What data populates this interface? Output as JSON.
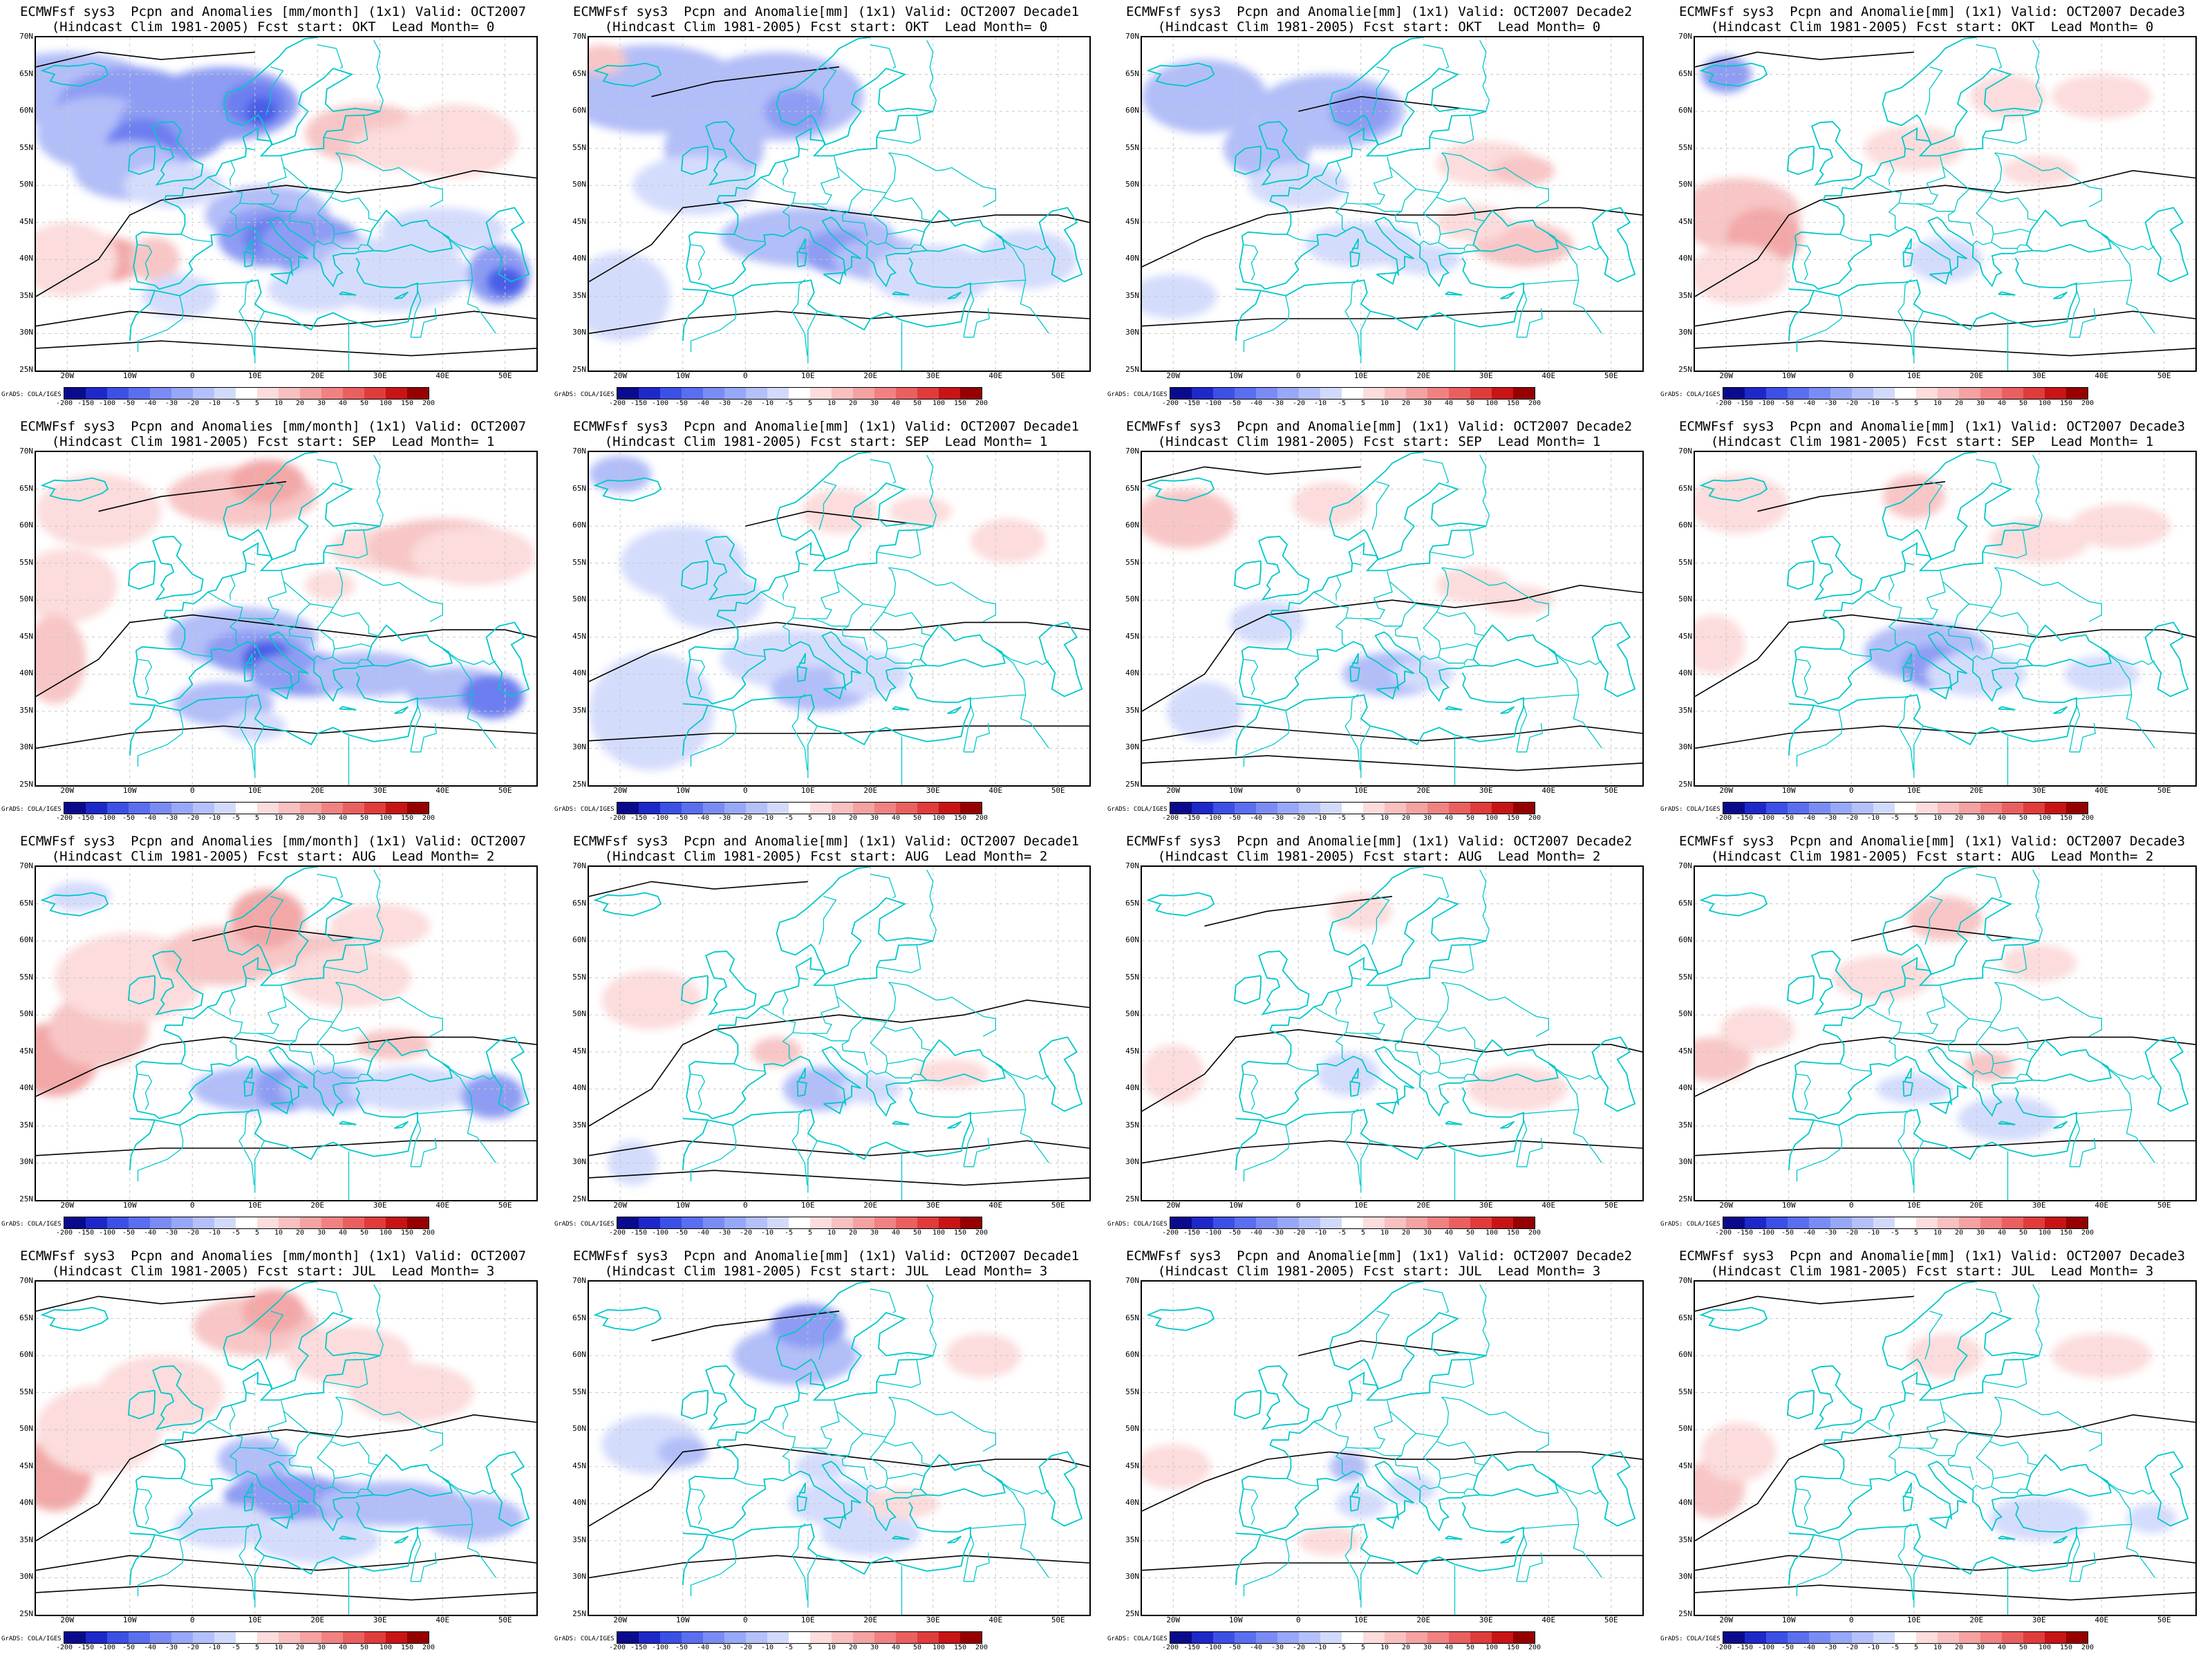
{
  "panels": [
    {
      "title1": "ECMWFsf sys3  Pcpn and Anomalies [mm/month] (1x1) Valid: OCT2007",
      "title2": "(Hindcast Clim 1981-2005) Fcst start: OKT  Lead Month= 0"
    },
    {
      "title1": "ECMWFsf sys3  Pcpn and Anomalie[mm] (1x1) Valid: OCT2007 Decade1",
      "title2": "(Hindcast Clim 1981-2005) Fcst start: OKT  Lead Month= 0"
    },
    {
      "title1": "ECMWFsf sys3  Pcpn and Anomalie[mm] (1x1) Valid: OCT2007 Decade2",
      "title2": "(Hindcast Clim 1981-2005) Fcst start: OKT  Lead Month= 0"
    },
    {
      "title1": "ECMWFsf sys3  Pcpn and Anomalie[mm] (1x1) Valid: OCT2007 Decade3",
      "title2": "(Hindcast Clim 1981-2005) Fcst start: OKT  Lead Month= 0"
    },
    {
      "title1": "ECMWFsf sys3  Pcpn and Anomalies [mm/month] (1x1) Valid: OCT2007",
      "title2": "(Hindcast Clim 1981-2005) Fcst start: SEP  Lead Month= 1"
    },
    {
      "title1": "ECMWFsf sys3  Pcpn and Anomalie[mm] (1x1) Valid: OCT2007 Decade1",
      "title2": "(Hindcast Clim 1981-2005) Fcst start: SEP  Lead Month= 1"
    },
    {
      "title1": "ECMWFsf sys3  Pcpn and Anomalie[mm] (1x1) Valid: OCT2007 Decade2",
      "title2": "(Hindcast Clim 1981-2005) Fcst start: SEP  Lead Month= 1"
    },
    {
      "title1": "ECMWFsf sys3  Pcpn and Anomalie[mm] (1x1) Valid: OCT2007 Decade3",
      "title2": "(Hindcast Clim 1981-2005) Fcst start: SEP  Lead Month= 1"
    },
    {
      "title1": "ECMWFsf sys3  Pcpn and Anomalies [mm/month] (1x1) Valid: OCT2007",
      "title2": "(Hindcast Clim 1981-2005) Fcst start: AUG  Lead Month= 2"
    },
    {
      "title1": "ECMWFsf sys3  Pcpn and Anomalie[mm] (1x1) Valid: OCT2007 Decade1",
      "title2": "(Hindcast Clim 1981-2005) Fcst start: AUG  Lead Month= 2"
    },
    {
      "title1": "ECMWFsf sys3  Pcpn and Anomalie[mm] (1x1) Valid: OCT2007 Decade2",
      "title2": "(Hindcast Clim 1981-2005) Fcst start: AUG  Lead Month= 2"
    },
    {
      "title1": "ECMWFsf sys3  Pcpn and Anomalie[mm] (1x1) Valid: OCT2007 Decade3",
      "title2": "(Hindcast Clim 1981-2005) Fcst start: AUG  Lead Month= 2"
    },
    {
      "title1": "ECMWFsf sys3  Pcpn and Anomalies [mm/month] (1x1) Valid: OCT2007",
      "title2": "(Hindcast Clim 1981-2005) Fcst start: JUL  Lead Month= 3"
    },
    {
      "title1": "ECMWFsf sys3  Pcpn and Anomalie[mm] (1x1) Valid: OCT2007 Decade1",
      "title2": "(Hindcast Clim 1981-2005) Fcst start: JUL  Lead Month= 3"
    },
    {
      "title1": "ECMWFsf sys3  Pcpn and Anomalie[mm] (1x1) Valid: OCT2007 Decade2",
      "title2": "(Hindcast Clim 1981-2005) Fcst start: JUL  Lead Month= 3"
    },
    {
      "title1": "ECMWFsf sys3  Pcpn and Anomalie[mm] (1x1) Valid: OCT2007 Decade3",
      "title2": "(Hindcast Clim 1981-2005) Fcst start: JUL  Lead Month= 3"
    }
  ],
  "lat_labels": [
    "70N",
    "65N",
    "60N",
    "55N",
    "50N",
    "45N",
    "40N",
    "35N",
    "30N",
    "25N"
  ],
  "lon_labels": [
    "20W",
    "10W",
    "0",
    "10E",
    "20E",
    "30E",
    "40E",
    "50E"
  ],
  "colorbar": {
    "labels": [
      "-200",
      "-150",
      "-100",
      "-50",
      "-40",
      "-30",
      "-20",
      "-10",
      "-5",
      "5",
      "10",
      "20",
      "30",
      "40",
      "50",
      "100",
      "150",
      "200"
    ],
    "colors": [
      "#0a0a8c",
      "#1e28c8",
      "#3c50e6",
      "#5a6ef0",
      "#7a8cf4",
      "#98a8f8",
      "#b4c0fa",
      "#d2dafc",
      "#ffffff",
      "#fcdcdc",
      "#f8c0c0",
      "#f4a2a2",
      "#f08282",
      "#ea6060",
      "#e03c3c",
      "#c81414",
      "#960000"
    ]
  },
  "credit": "GrADS: COLA/IGES",
  "colors": {
    "coast": "#00c8c8",
    "contour": "#000000",
    "grid": "#c8c8c8"
  }
}
